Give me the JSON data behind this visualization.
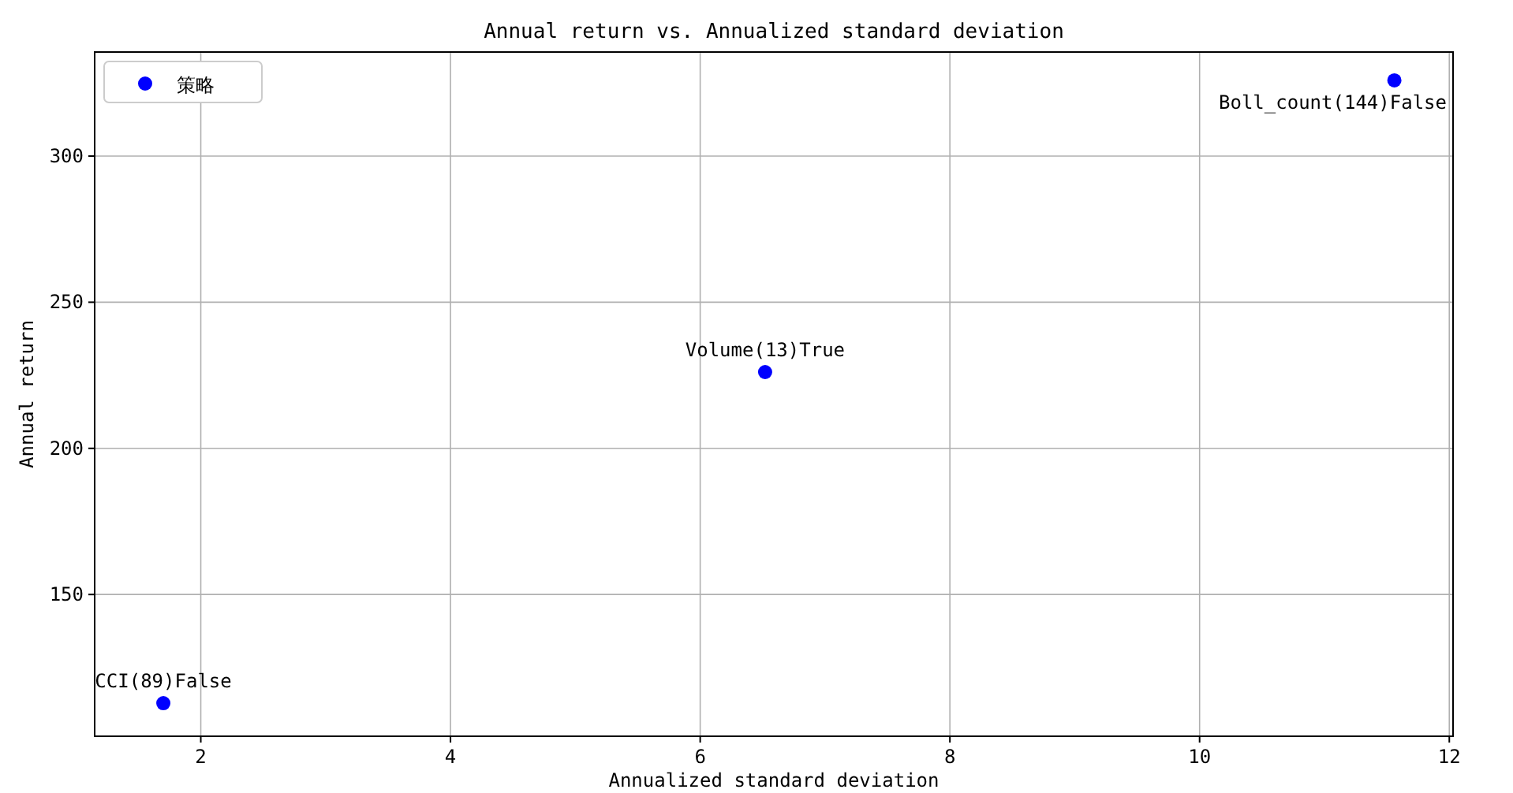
{
  "chart_data": {
    "type": "scatter",
    "title": "Annual return vs. Annualized standard deviation",
    "xlabel": "Annualized standard deviation",
    "ylabel": "Annual return",
    "x": [
      1.7,
      6.52,
      11.56
    ],
    "series": [
      {
        "name": "策略",
        "color": "#0000ff",
        "values": [
          112.8,
          226.1,
          325.9
        ]
      }
    ],
    "xlim": [
      1.15,
      12.03
    ],
    "ylim": [
      101.5,
      335.6
    ],
    "xticks": [
      2,
      4,
      6,
      8,
      10,
      12
    ],
    "yticks": [
      150,
      200,
      250,
      300
    ],
    "grid": true,
    "legend": "top left",
    "marker": "circle",
    "annotations": [
      {
        "text": "CCI(89)False",
        "x": 1.7,
        "y": 112.8
      },
      {
        "text": "Volume(13)True",
        "x": 6.52,
        "y": 226.1
      },
      {
        "text": "Boll_count(144)False",
        "x": 11.56,
        "y": 325.9
      }
    ]
  }
}
